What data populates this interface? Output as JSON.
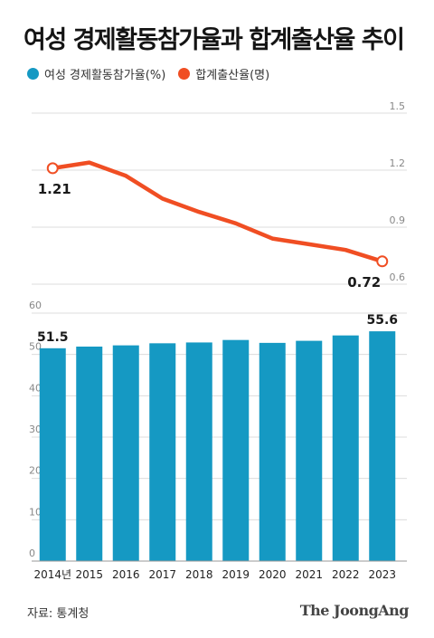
{
  "title": "여성 경제활동참가율과 합계출산율 추이",
  "source": "자료: 통계청",
  "brand": "The JoongAng",
  "colors": {
    "bar": "#1599c3",
    "line": "#f04e23",
    "grid": "#dcdcdc",
    "axis_text": "#888888"
  },
  "chart_data": [
    {
      "type": "line",
      "title": "",
      "xlabel": "",
      "ylabel": "",
      "categories": [
        "2014년",
        "2015",
        "2016",
        "2017",
        "2018",
        "2019",
        "2020",
        "2021",
        "2022",
        "2023"
      ],
      "series": [
        {
          "name": "합계출산율(명)",
          "values": [
            1.21,
            1.24,
            1.17,
            1.05,
            0.98,
            0.92,
            0.84,
            0.81,
            0.78,
            0.72
          ]
        }
      ],
      "ylim": [
        0.6,
        1.5
      ],
      "yticks": [
        "1.5",
        "1.2",
        "0.9",
        "0.6"
      ],
      "y_axis_position": "right",
      "data_labels": [
        {
          "index": 0,
          "text": "1.21"
        },
        {
          "index": 9,
          "text": "0.72"
        }
      ],
      "grid": true
    },
    {
      "type": "bar",
      "title": "",
      "xlabel": "",
      "ylabel": "",
      "categories": [
        "2014년",
        "2015",
        "2016",
        "2017",
        "2018",
        "2019",
        "2020",
        "2021",
        "2022",
        "2023"
      ],
      "series": [
        {
          "name": "여성 경제활동참가율(%)",
          "values": [
            51.5,
            51.9,
            52.2,
            52.7,
            52.9,
            53.5,
            52.8,
            53.3,
            54.6,
            55.6
          ]
        }
      ],
      "ylim": [
        0,
        60
      ],
      "yticks": [
        "0",
        "10",
        "20",
        "30",
        "40",
        "50",
        "60"
      ],
      "y_axis_position": "left",
      "data_labels": [
        {
          "index": 0,
          "text": "51.5"
        },
        {
          "index": 9,
          "text": "55.6"
        }
      ],
      "grid": true
    }
  ]
}
